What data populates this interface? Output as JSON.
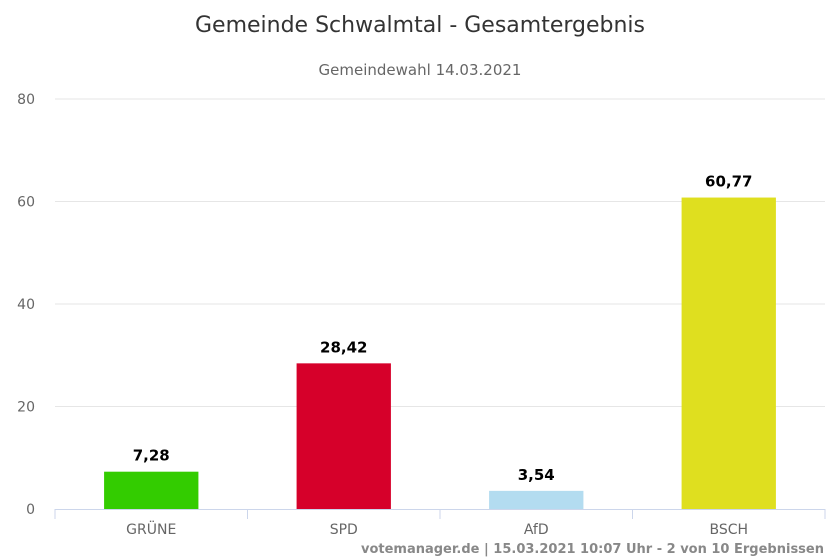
{
  "chart_data": {
    "type": "bar",
    "title": "Gemeinde Schwalmtal - Gesamtergebnis",
    "subtitle": "Gemeindewahl 14.03.2021",
    "categories": [
      "GRÜNE",
      "SPD",
      "AfD",
      "BSCH"
    ],
    "values": [
      7.28,
      28.42,
      3.54,
      60.77
    ],
    "data_labels": [
      "7,28",
      "28,42",
      "3,54",
      "60,77"
    ],
    "colors": [
      "#33cc00",
      "#d6002a",
      "#b3dcf0",
      "#dfdf1f"
    ],
    "yticks": [
      0,
      20,
      40,
      60,
      80
    ],
    "ylim": [
      0,
      80
    ],
    "grid": true,
    "legend": "none"
  },
  "credit": "votemanager.de | 15.03.2021 10:07 Uhr - 2 von 10 Ergebnissen"
}
